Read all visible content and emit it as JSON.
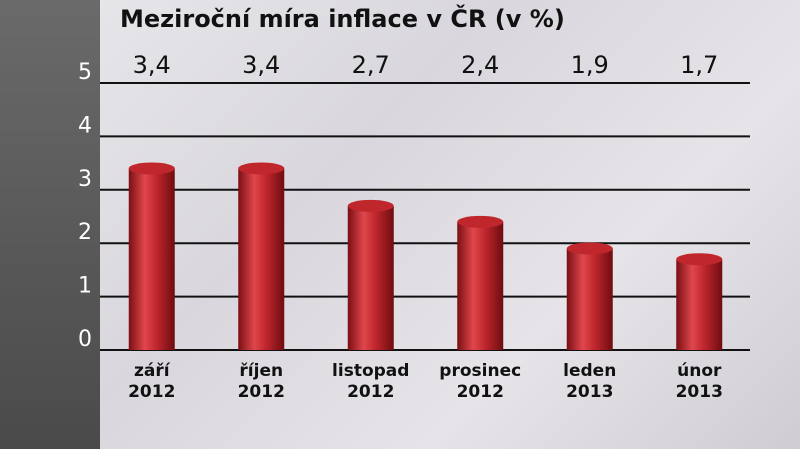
{
  "chart_data": {
    "type": "bar",
    "title": "Meziroční míra inflace v ČR (v %)",
    "categories": [
      "září\n2012",
      "říjen\n2012",
      "listopad\n2012",
      "prosinec\n2012",
      "leden\n2013",
      "únor\n2013"
    ],
    "values": [
      3.4,
      3.4,
      2.7,
      2.4,
      1.9,
      1.7
    ],
    "value_labels": [
      "3,4",
      "3,4",
      "2,7",
      "2,4",
      "1,9",
      "1,7"
    ],
    "color": "#c0272d",
    "ylim": [
      0,
      5
    ],
    "yticks": [
      0,
      1,
      2,
      3,
      4,
      5
    ],
    "grid": true
  }
}
